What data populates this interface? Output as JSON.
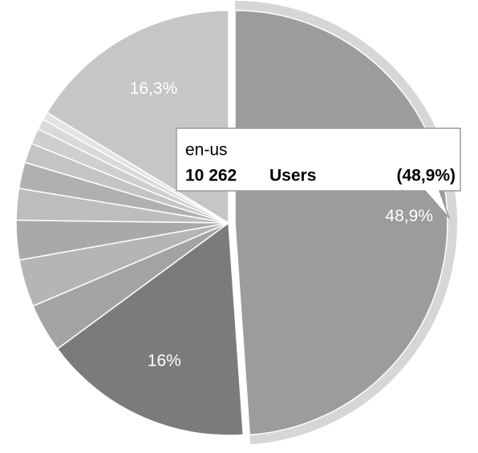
{
  "chart_data": {
    "type": "pie",
    "categories": [
      "en-us",
      null,
      null,
      null,
      null,
      null,
      null,
      null,
      null,
      null,
      null,
      null
    ],
    "series": [
      {
        "name": "Users",
        "values": [
          48.9,
          16,
          3.7,
          3.6,
          3.0,
          2.4,
          2.0,
          1.5,
          1.2,
          0.8,
          0.6,
          16.3
        ],
        "value_labels": [
          "48,9%",
          "16%",
          null,
          null,
          null,
          null,
          null,
          null,
          null,
          null,
          null,
          "16,3%"
        ],
        "colors": [
          "#9c9c9c",
          "#7b7b7b",
          "#a3a3a3",
          "#b5b5b5",
          "#a9a9a9",
          "#bdbdbd",
          "#b0b0b0",
          "#c4c4c4",
          "#cfcfcf",
          "#d9d9d9",
          "#e3e3e3",
          "#c6c6c6"
        ]
      }
    ],
    "tooltip": {
      "value": 10262,
      "label": "10 262",
      "percent_label": "(48,9%)"
    }
  }
}
